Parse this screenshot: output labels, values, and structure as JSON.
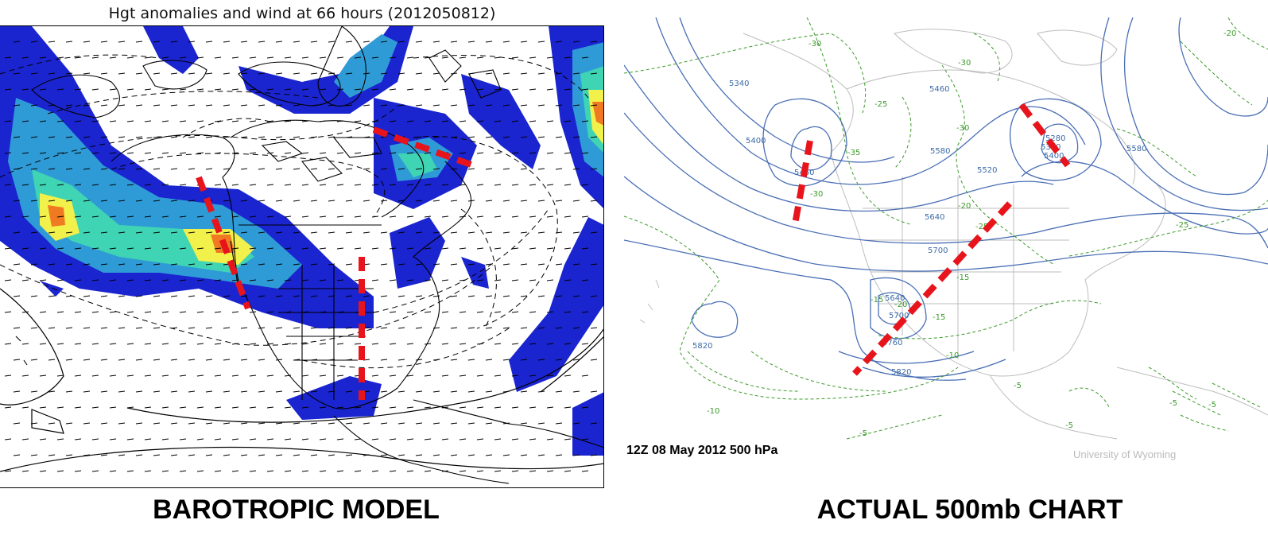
{
  "left_panel": {
    "title": "Hgt anomalies and wind at 66 hours (2012050812)",
    "caption": "BAROTROPIC MODEL"
  },
  "right_panel": {
    "timestamp": "12Z 08 May 2012  500 hPa",
    "credit": "University of Wyoming",
    "caption": "ACTUAL 500mb CHART",
    "height_labels": [
      "5340",
      "5400",
      "5460",
      "5520",
      "5580",
      "5580",
      "5640",
      "5700",
      "5640",
      "5700",
      "5760",
      "5820",
      "5820",
      "5280",
      "5340",
      "5400",
      "5460"
    ],
    "temp_labels": [
      "-30",
      "-30",
      "-25",
      "-30",
      "-35",
      "-30",
      "-25",
      "-20",
      "-15",
      "-20",
      "-15",
      "-15",
      "-10",
      "-25",
      "-20",
      "-10",
      "-5",
      "-5",
      "-5",
      "-5",
      "-5"
    ]
  },
  "colors": {
    "trough_line": "#e8141c",
    "wind_strong": "#f2f04a",
    "wind_peak": "#f07a22",
    "wind_mid": "#2f9bd6",
    "wind_weak": "#1a24cf",
    "height_contour": "#4a6fb5",
    "temp_contour": "#3c9a2a"
  }
}
